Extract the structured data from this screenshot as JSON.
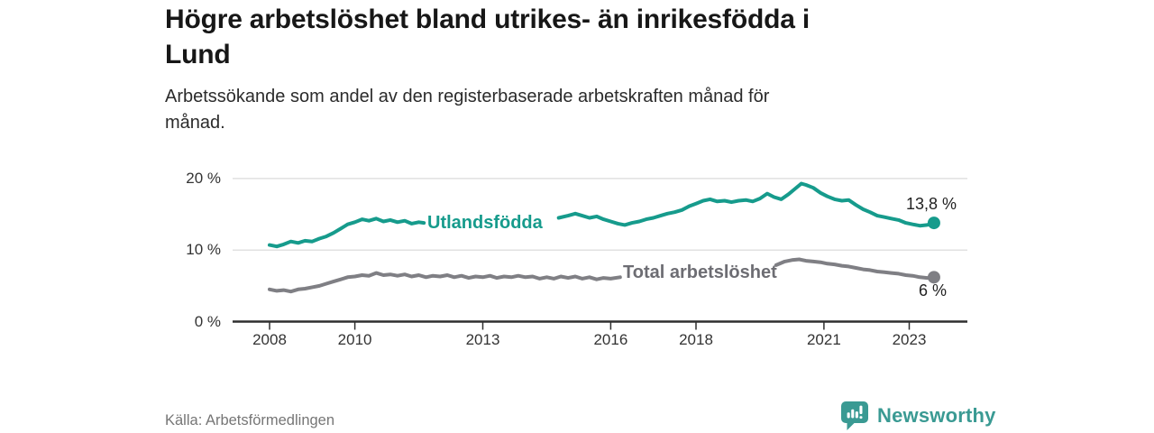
{
  "colors": {
    "accent_teal": "#169B8C",
    "series_gray": "#7F7F84",
    "series_gray_label": "#6D6D73",
    "brand_teal": "#3A9A93",
    "axis_text": "#333333",
    "axis_line": "#2F2F2F",
    "gridline": "#E1E1E1",
    "end_label_text": "#222222"
  },
  "footer": {
    "source": "Källa: Arbetsförmedlingen",
    "brand": "Newsworthy"
  },
  "chart_data": {
    "type": "line",
    "title": "Högre arbetslöshet bland utrikes- än inrikesfödda i\nLund",
    "subtitle": "Arbetssökande som andel av den registerbaserade arbetskraften månad för\nmånad.",
    "x_unit": "year (monthly data)",
    "y_unit": "percent of registered labour force",
    "x_range": [
      2007.5,
      2024.3
    ],
    "y_range": [
      0,
      21.5
    ],
    "grid": "horizontal-only",
    "legend": "inline-labels-on-lines",
    "x_axis": {
      "ticks": [
        {
          "year": 2008,
          "label": "2008"
        },
        {
          "year": 2010,
          "label": "2010"
        },
        {
          "year": 2013,
          "label": "2013"
        },
        {
          "year": 2016,
          "label": "2016"
        },
        {
          "year": 2018,
          "label": "2018"
        },
        {
          "year": 2021,
          "label": "2021"
        },
        {
          "year": 2023,
          "label": "2023"
        }
      ]
    },
    "y_axis": {
      "ticks": [
        {
          "value": 0,
          "label": "0 %"
        },
        {
          "value": 10,
          "label": "10 %"
        },
        {
          "value": 20,
          "label": "20 %"
        }
      ]
    },
    "series": [
      {
        "name": "Utlandsfödda",
        "label": "Utlandsfödda",
        "color": "#169B8C",
        "label_color": "#169B8C",
        "end_label": "13,8 %",
        "end_value": 13.8,
        "label_gap_years": [
          2011.62,
          2014.78
        ],
        "points": [
          [
            2008.0,
            10.7
          ],
          [
            2008.17,
            10.5
          ],
          [
            2008.33,
            10.8
          ],
          [
            2008.5,
            11.2
          ],
          [
            2008.67,
            11.0
          ],
          [
            2008.83,
            11.3
          ],
          [
            2009.0,
            11.2
          ],
          [
            2009.17,
            11.6
          ],
          [
            2009.33,
            11.9
          ],
          [
            2009.5,
            12.4
          ],
          [
            2009.67,
            13.0
          ],
          [
            2009.83,
            13.6
          ],
          [
            2010.0,
            13.9
          ],
          [
            2010.17,
            14.3
          ],
          [
            2010.33,
            14.1
          ],
          [
            2010.5,
            14.4
          ],
          [
            2010.67,
            14.0
          ],
          [
            2010.83,
            14.2
          ],
          [
            2011.0,
            13.9
          ],
          [
            2011.17,
            14.1
          ],
          [
            2011.33,
            13.7
          ],
          [
            2011.5,
            13.9
          ],
          [
            2011.62,
            13.8
          ],
          [
            2011.83,
            13.7
          ],
          [
            2012.0,
            14.0
          ],
          [
            2012.25,
            13.8
          ],
          [
            2012.5,
            13.9
          ],
          [
            2012.75,
            13.8
          ],
          [
            2013.0,
            14.0
          ],
          [
            2013.25,
            13.8
          ],
          [
            2013.5,
            14.0
          ],
          [
            2013.75,
            14.1
          ],
          [
            2014.0,
            14.0
          ],
          [
            2014.25,
            14.2
          ],
          [
            2014.5,
            14.4
          ],
          [
            2014.78,
            14.5
          ],
          [
            2015.0,
            14.8
          ],
          [
            2015.17,
            15.1
          ],
          [
            2015.33,
            14.8
          ],
          [
            2015.5,
            14.5
          ],
          [
            2015.67,
            14.7
          ],
          [
            2015.83,
            14.3
          ],
          [
            2016.0,
            14.0
          ],
          [
            2016.17,
            13.7
          ],
          [
            2016.33,
            13.5
          ],
          [
            2016.5,
            13.8
          ],
          [
            2016.67,
            14.0
          ],
          [
            2016.83,
            14.3
          ],
          [
            2017.0,
            14.5
          ],
          [
            2017.17,
            14.8
          ],
          [
            2017.33,
            15.1
          ],
          [
            2017.5,
            15.3
          ],
          [
            2017.67,
            15.6
          ],
          [
            2017.83,
            16.1
          ],
          [
            2018.0,
            16.5
          ],
          [
            2018.17,
            16.9
          ],
          [
            2018.33,
            17.1
          ],
          [
            2018.5,
            16.8
          ],
          [
            2018.67,
            16.9
          ],
          [
            2018.83,
            16.7
          ],
          [
            2019.0,
            16.9
          ],
          [
            2019.17,
            17.0
          ],
          [
            2019.33,
            16.8
          ],
          [
            2019.5,
            17.2
          ],
          [
            2019.67,
            17.9
          ],
          [
            2019.83,
            17.4
          ],
          [
            2020.0,
            17.1
          ],
          [
            2020.17,
            17.8
          ],
          [
            2020.33,
            18.6
          ],
          [
            2020.47,
            19.3
          ],
          [
            2020.58,
            19.1
          ],
          [
            2020.75,
            18.7
          ],
          [
            2020.92,
            18.0
          ],
          [
            2021.08,
            17.5
          ],
          [
            2021.25,
            17.1
          ],
          [
            2021.42,
            16.9
          ],
          [
            2021.58,
            17.0
          ],
          [
            2021.75,
            16.3
          ],
          [
            2021.92,
            15.7
          ],
          [
            2022.08,
            15.3
          ],
          [
            2022.25,
            14.8
          ],
          [
            2022.42,
            14.6
          ],
          [
            2022.58,
            14.4
          ],
          [
            2022.75,
            14.2
          ],
          [
            2022.92,
            13.8
          ],
          [
            2023.08,
            13.6
          ],
          [
            2023.25,
            13.4
          ],
          [
            2023.42,
            13.5
          ],
          [
            2023.58,
            13.8
          ]
        ]
      },
      {
        "name": "Total arbetslöshet",
        "label": "Total arbetslöshet",
        "color": "#7F7F84",
        "label_color": "#6D6D73",
        "end_label": "6 %",
        "end_value": 6,
        "label_gap_years": [
          2016.22,
          2019.88
        ],
        "points": [
          [
            2008.0,
            4.5
          ],
          [
            2008.17,
            4.3
          ],
          [
            2008.33,
            4.4
          ],
          [
            2008.5,
            4.2
          ],
          [
            2008.67,
            4.5
          ],
          [
            2008.83,
            4.6
          ],
          [
            2009.0,
            4.8
          ],
          [
            2009.17,
            5.0
          ],
          [
            2009.33,
            5.3
          ],
          [
            2009.5,
            5.6
          ],
          [
            2009.67,
            5.9
          ],
          [
            2009.83,
            6.2
          ],
          [
            2010.0,
            6.3
          ],
          [
            2010.17,
            6.5
          ],
          [
            2010.33,
            6.4
          ],
          [
            2010.5,
            6.8
          ],
          [
            2010.67,
            6.5
          ],
          [
            2010.83,
            6.6
          ],
          [
            2011.0,
            6.4
          ],
          [
            2011.17,
            6.6
          ],
          [
            2011.33,
            6.3
          ],
          [
            2011.5,
            6.5
          ],
          [
            2011.67,
            6.2
          ],
          [
            2011.83,
            6.4
          ],
          [
            2012.0,
            6.3
          ],
          [
            2012.17,
            6.5
          ],
          [
            2012.33,
            6.2
          ],
          [
            2012.5,
            6.4
          ],
          [
            2012.67,
            6.1
          ],
          [
            2012.83,
            6.3
          ],
          [
            2013.0,
            6.2
          ],
          [
            2013.17,
            6.4
          ],
          [
            2013.33,
            6.1
          ],
          [
            2013.5,
            6.3
          ],
          [
            2013.67,
            6.2
          ],
          [
            2013.83,
            6.4
          ],
          [
            2014.0,
            6.2
          ],
          [
            2014.17,
            6.3
          ],
          [
            2014.33,
            6.0
          ],
          [
            2014.5,
            6.2
          ],
          [
            2014.67,
            6.0
          ],
          [
            2014.83,
            6.3
          ],
          [
            2015.0,
            6.1
          ],
          [
            2015.17,
            6.3
          ],
          [
            2015.33,
            6.0
          ],
          [
            2015.5,
            6.2
          ],
          [
            2015.67,
            5.9
          ],
          [
            2015.83,
            6.1
          ],
          [
            2016.0,
            6.0
          ],
          [
            2016.22,
            6.2
          ],
          [
            2016.5,
            6.1
          ],
          [
            2017.0,
            6.2
          ],
          [
            2017.5,
            6.3
          ],
          [
            2018.0,
            6.3
          ],
          [
            2018.5,
            6.4
          ],
          [
            2019.0,
            6.5
          ],
          [
            2019.5,
            6.7
          ],
          [
            2019.88,
            7.9
          ],
          [
            2020.08,
            8.4
          ],
          [
            2020.25,
            8.6
          ],
          [
            2020.42,
            8.7
          ],
          [
            2020.58,
            8.5
          ],
          [
            2020.75,
            8.4
          ],
          [
            2020.92,
            8.3
          ],
          [
            2021.08,
            8.1
          ],
          [
            2021.25,
            8.0
          ],
          [
            2021.42,
            7.8
          ],
          [
            2021.58,
            7.7
          ],
          [
            2021.75,
            7.5
          ],
          [
            2021.92,
            7.3
          ],
          [
            2022.08,
            7.2
          ],
          [
            2022.25,
            7.0
          ],
          [
            2022.42,
            6.9
          ],
          [
            2022.58,
            6.8
          ],
          [
            2022.75,
            6.7
          ],
          [
            2022.92,
            6.5
          ],
          [
            2023.08,
            6.4
          ],
          [
            2023.25,
            6.2
          ],
          [
            2023.42,
            6.1
          ],
          [
            2023.58,
            6.2
          ]
        ]
      }
    ]
  }
}
